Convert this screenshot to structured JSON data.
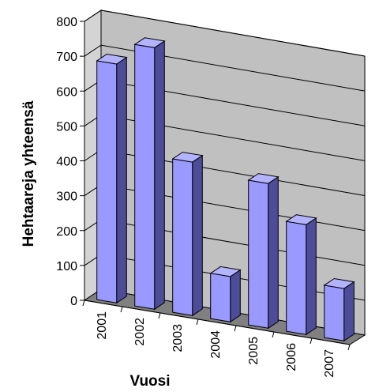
{
  "chart_data": {
    "type": "bar",
    "categories": [
      "2001",
      "2002",
      "2003",
      "2004",
      "2005",
      "2006",
      "2007"
    ],
    "values": [
      685,
      750,
      440,
      130,
      415,
      315,
      150
    ],
    "xlabel": "Vuosi",
    "ylabel": "Hehtaareja yhteensä",
    "ylim": [
      0,
      800
    ],
    "yticks": [
      "0",
      "100",
      "200",
      "300",
      "400",
      "500",
      "600",
      "700",
      "800"
    ],
    "grid": true,
    "three_d": true,
    "colors": {
      "bar_front": "#9999ff",
      "bar_side": "#4c4c99",
      "bar_top": "#b3b3ff",
      "back_wall": "#c0c0c0",
      "side_wall": "#d4d4d4",
      "floor": "#808080"
    }
  }
}
